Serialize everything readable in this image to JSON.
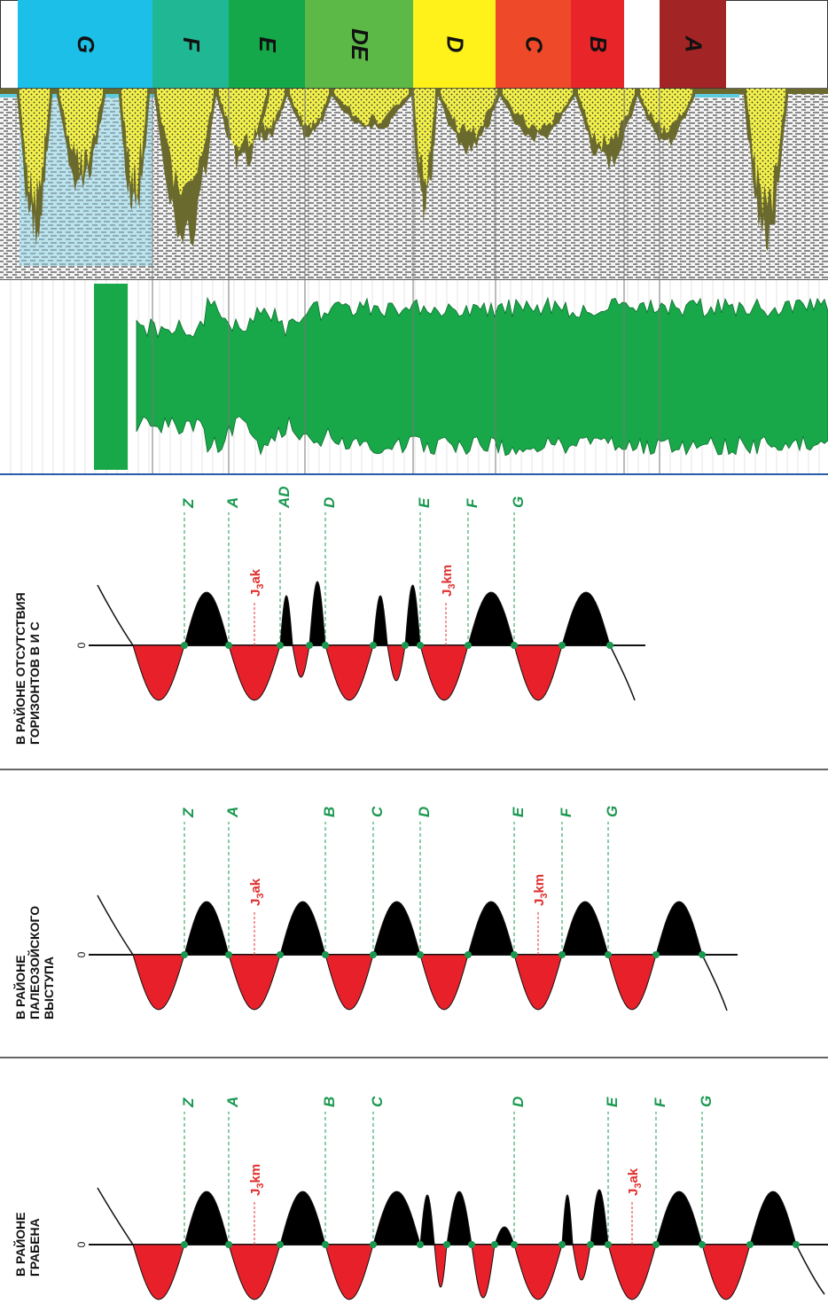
{
  "zones": [
    {
      "label": "A",
      "color": "#a32424"
    },
    {
      "label": "",
      "color": "#ffffff"
    },
    {
      "label": "B",
      "color": "#e8262a"
    },
    {
      "label": "C",
      "color": "#ee4a2a"
    },
    {
      "label": "D",
      "color": "#fef21a"
    },
    {
      "label": "DE",
      "color": "#5cb947"
    },
    {
      "label": "E",
      "color": "#14a84a"
    },
    {
      "label": "F",
      "color": "#20b894"
    },
    {
      "label": "G",
      "color": "#1bbfe8"
    }
  ],
  "colors": {
    "amplitude": "#18a84a",
    "black_lobe": "#000000",
    "red_lobe": "#e8202a",
    "node": "#1a9850",
    "horizon_line": "#1a9850",
    "marker": "#e03030",
    "sand": "#f2f04a",
    "olive": "#6b6a2e",
    "cyan": "#5ccbe0"
  },
  "panels": [
    {
      "title_lines": [
        "В РАЙОНЕ ОТСУТСТВИЯ",
        "ГОРИЗОНТОВ В И С"
      ],
      "zero_label": "0",
      "horizons": [
        "Z",
        "A",
        "AD",
        "D",
        "E",
        "F",
        "G"
      ],
      "markers": [
        {
          "base": "J",
          "sub": "3",
          "suffix": "ak"
        },
        {
          "base": "J",
          "sub": "3",
          "suffix": "km"
        }
      ]
    },
    {
      "title_lines": [
        "В РАЙОНЕ",
        "ПАЛЕОЗОЙСКОГО",
        "ВЫСТУПА"
      ],
      "zero_label": "0",
      "horizons": [
        "Z",
        "A",
        "B",
        "C",
        "D",
        "E",
        "F",
        "G"
      ],
      "markers": [
        {
          "base": "J",
          "sub": "3",
          "suffix": "ak"
        },
        {
          "base": "J",
          "sub": "3",
          "suffix": "km"
        }
      ]
    },
    {
      "title_lines": [
        "В РАЙОНЕ",
        "ГРАБЕНА"
      ],
      "zero_label": "0",
      "horizons": [
        "Z",
        "A",
        "B",
        "C",
        "D",
        "E",
        "F",
        "G"
      ],
      "markers": [
        {
          "base": "J",
          "sub": "3",
          "suffix": "ak"
        },
        {
          "base": "J",
          "sub": "3",
          "suffix": "km"
        }
      ]
    }
  ]
}
